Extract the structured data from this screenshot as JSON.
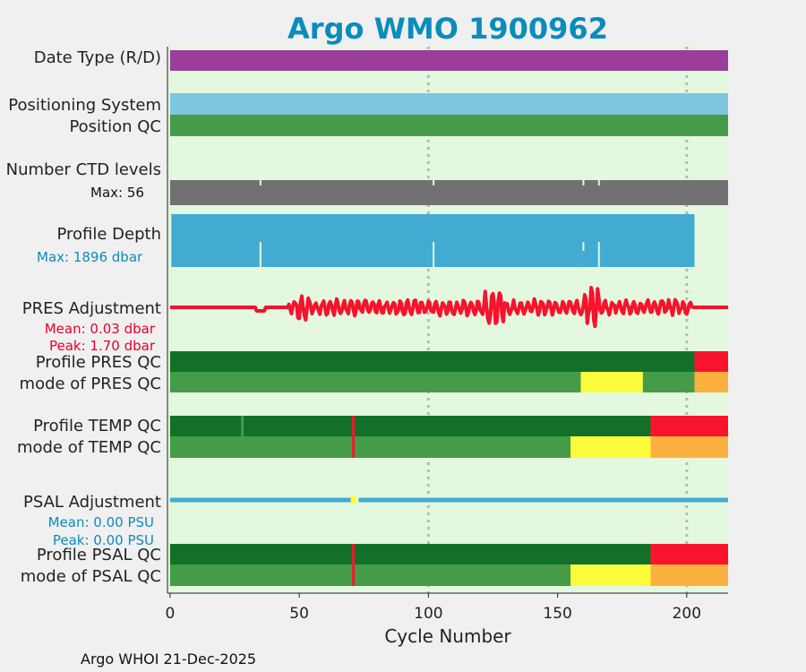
{
  "chart_data": {
    "type": "timeline",
    "title": "Argo WMO 1900962",
    "xlabel": "Cycle Number",
    "xlim": [
      -1,
      216
    ],
    "x_ticks": [
      0,
      50,
      100,
      150,
      200
    ],
    "footer": "Argo WHOI 21-Dec-2025",
    "colors": {
      "title": "#0b8cbb",
      "panel_bg": "#e3f8de",
      "data_type": "#9b3e9b",
      "positioning": "#7ec6e0",
      "qc_good": "#469b48",
      "qc_dark": "#127028",
      "qc_yellow": "#fcfc3c",
      "qc_orange": "#fcb040",
      "qc_red": "#f8142c",
      "ctd": "#717171",
      "depth": "#42abd1",
      "pres_adj": "#f5132d",
      "psal_adj": "#42abd1",
      "cyan_text": "#0b8cbb",
      "red_text": "#e8002a"
    },
    "rows": {
      "data_type": {
        "label": "Date Type (R/D)",
        "segments": [
          {
            "from": 0,
            "to": 216,
            "color": "data_type"
          }
        ]
      },
      "positioning": {
        "label": "Positioning System",
        "segments": [
          {
            "from": 0,
            "to": 216,
            "color": "positioning"
          }
        ]
      },
      "position_qc": {
        "label": "Position QC",
        "segments": [
          {
            "from": 0,
            "to": 216,
            "color": "qc_good"
          }
        ]
      },
      "ctd": {
        "label": "Number CTD levels",
        "note": "Max: 56",
        "max": 56,
        "gaps": [
          35,
          102,
          160,
          166
        ]
      },
      "depth": {
        "label": "Profile Depth",
        "note": "Max: 1896 dbar",
        "max_cycle": 203,
        "gaps": [
          35,
          102,
          160,
          166
        ]
      },
      "pres_adj": {
        "label": "PRES Adjustment",
        "mean": "Mean: 0.03 dbar",
        "peak": "Peak: 1.70 dbar",
        "active_from": 46,
        "active_to": 202
      },
      "profile_pres_qc": {
        "label": "Profile PRES QC",
        "segments": [
          {
            "from": 0,
            "to": 203,
            "color": "qc_dark"
          },
          {
            "from": 203,
            "to": 216,
            "color": "qc_red"
          }
        ]
      },
      "mode_pres_qc": {
        "label": "mode of PRES QC",
        "segments": [
          {
            "from": 0,
            "to": 159,
            "color": "qc_good"
          },
          {
            "from": 159,
            "to": 183,
            "color": "qc_yellow"
          },
          {
            "from": 183,
            "to": 203,
            "color": "qc_good"
          },
          {
            "from": 203,
            "to": 216,
            "color": "qc_orange"
          }
        ]
      },
      "profile_temp_qc": {
        "label": "Profile TEMP QC",
        "segments": [
          {
            "from": 0,
            "to": 186,
            "color": "qc_dark"
          },
          {
            "from": 186,
            "to": 216,
            "color": "qc_red"
          }
        ],
        "marks": [
          {
            "at": 28,
            "color": "qc_good"
          },
          {
            "at": 71,
            "color": "qc_red"
          }
        ]
      },
      "mode_temp_qc": {
        "label": "mode of TEMP QC",
        "segments": [
          {
            "from": 0,
            "to": 155,
            "color": "qc_good"
          },
          {
            "from": 155,
            "to": 186,
            "color": "qc_yellow"
          },
          {
            "from": 186,
            "to": 216,
            "color": "qc_orange"
          }
        ],
        "marks": [
          {
            "at": 71,
            "color": "qc_red"
          }
        ]
      },
      "psal_adj": {
        "label": "PSAL Adjustment",
        "mean": "Mean: 0.00 PSU",
        "peak": "Peak: 0.00 PSU",
        "gap_at": 71
      },
      "profile_psal_qc": {
        "label": "Profile PSAL QC",
        "segments": [
          {
            "from": 0,
            "to": 186,
            "color": "qc_dark"
          },
          {
            "from": 186,
            "to": 216,
            "color": "qc_red"
          }
        ],
        "marks": [
          {
            "at": 71,
            "color": "qc_red"
          }
        ]
      },
      "mode_psal_qc": {
        "label": "mode of PSAL QC",
        "segments": [
          {
            "from": 0,
            "to": 155,
            "color": "qc_good"
          },
          {
            "from": 155,
            "to": 186,
            "color": "qc_yellow"
          },
          {
            "from": 186,
            "to": 216,
            "color": "qc_orange"
          }
        ],
        "marks": [
          {
            "at": 71,
            "color": "qc_red"
          }
        ]
      }
    }
  }
}
